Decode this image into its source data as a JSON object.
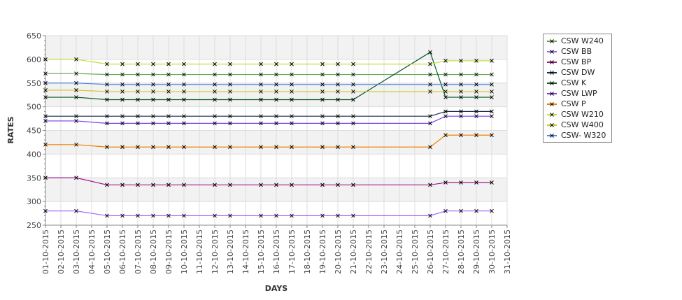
{
  "chart_data": {
    "type": "line",
    "xlabel": "DAYS",
    "ylabel": "RATES",
    "ylim": [
      250,
      650
    ],
    "y_ticks": [
      250,
      300,
      350,
      400,
      450,
      500,
      550,
      600,
      650
    ],
    "x_tick_labels": [
      "01-10-2015",
      "02-10-2015",
      "03-10-2015",
      "04-10-2015",
      "05-10-2015",
      "06-10-2015",
      "07-10-2015",
      "08-10-2015",
      "09-10-2015",
      "10-10-2015",
      "11-10-2015",
      "12-10-2015",
      "13-10-2015",
      "14-10-2015",
      "15-10-2015",
      "16-10-2015",
      "17-10-2015",
      "18-10-2015",
      "19-10-2015",
      "20-10-2015",
      "21-10-2015",
      "22-10-2015",
      "23-10-2015",
      "24-10-2015",
      "25-10-2015",
      "26-10-2015",
      "27-10-2015",
      "28-10-2015",
      "29-10-2015",
      "30-10-2015",
      "31-10-2015"
    ],
    "x_days": [
      1,
      3,
      5,
      6,
      7,
      8,
      9,
      10,
      12,
      13,
      15,
      16,
      17,
      19,
      20,
      21,
      26,
      27,
      28,
      29,
      30
    ],
    "legend_position": "right",
    "series": [
      {
        "name": "CSW  W240",
        "color": "#6aa84f",
        "values": [
          570,
          570,
          568,
          568,
          568,
          568,
          568,
          568,
          568,
          568,
          568,
          568,
          568,
          568,
          568,
          568,
          568,
          568,
          568,
          568,
          568
        ]
      },
      {
        "name": "CSW BB",
        "color": "#9966ff",
        "values": [
          280,
          280,
          270,
          270,
          270,
          270,
          270,
          270,
          270,
          270,
          270,
          270,
          270,
          270,
          270,
          270,
          270,
          280,
          280,
          280,
          280
        ]
      },
      {
        "name": "CSW BP",
        "color": "#a0148c",
        "values": [
          350,
          350,
          335,
          335,
          335,
          335,
          335,
          335,
          335,
          335,
          335,
          335,
          335,
          335,
          335,
          335,
          335,
          340,
          340,
          340,
          340
        ]
      },
      {
        "name": "CSW DW",
        "color": "#1a2b4a",
        "values": [
          480,
          480,
          480,
          480,
          480,
          480,
          480,
          480,
          480,
          480,
          480,
          480,
          480,
          480,
          480,
          480,
          480,
          490,
          490,
          490,
          490
        ]
      },
      {
        "name": "CSW K",
        "color": "#0a5a28",
        "values": [
          520,
          520,
          515,
          515,
          515,
          515,
          515,
          515,
          515,
          515,
          515,
          515,
          515,
          515,
          515,
          515,
          615,
          520,
          520,
          520,
          520
        ]
      },
      {
        "name": "CSW LWP",
        "color": "#7b3ff0",
        "values": [
          470,
          470,
          465,
          465,
          465,
          465,
          465,
          465,
          465,
          465,
          465,
          465,
          465,
          465,
          465,
          465,
          465,
          480,
          480,
          480,
          480
        ]
      },
      {
        "name": "CSW P",
        "color": "#f08000",
        "values": [
          420,
          420,
          415,
          415,
          415,
          415,
          415,
          415,
          415,
          415,
          415,
          415,
          415,
          415,
          415,
          415,
          415,
          440,
          440,
          440,
          440
        ]
      },
      {
        "name": "CSW W210",
        "color": "#c8dc3c",
        "values": [
          600,
          600,
          590,
          590,
          590,
          590,
          590,
          590,
          590,
          590,
          590,
          590,
          590,
          590,
          590,
          590,
          590,
          597,
          597,
          597,
          597
        ]
      },
      {
        "name": "CSW W400",
        "color": "#d0c820",
        "values": [
          535,
          535,
          532,
          532,
          532,
          532,
          532,
          532,
          532,
          532,
          532,
          532,
          532,
          532,
          532,
          532,
          532,
          532,
          532,
          532,
          532
        ]
      },
      {
        "name": "CSW- W320",
        "color": "#4a86e8",
        "values": [
          550,
          550,
          547,
          547,
          547,
          547,
          547,
          547,
          547,
          547,
          547,
          547,
          547,
          547,
          547,
          547,
          547,
          547,
          547,
          547,
          547
        ]
      }
    ]
  }
}
